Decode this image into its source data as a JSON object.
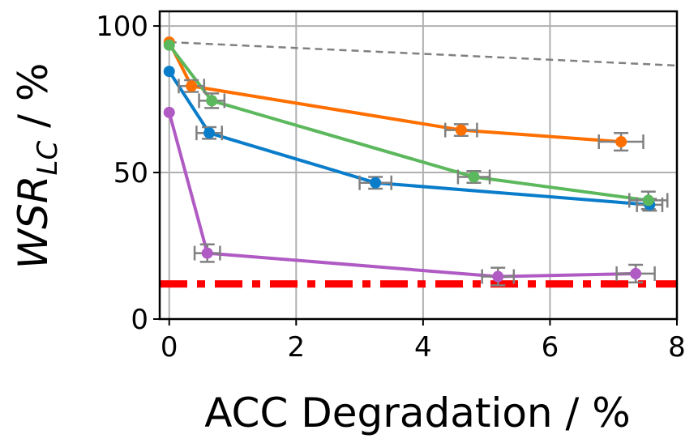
{
  "chart_data": {
    "type": "line",
    "title": "",
    "xlabel": "ACC Degradation / %",
    "ylabel": {
      "main": "WSR",
      "subscript": "LC",
      "suffix": " / %"
    },
    "xlim": [
      -0.15,
      8
    ],
    "ylim": [
      0,
      105
    ],
    "xticks": [
      0,
      2,
      4,
      6,
      8
    ],
    "yticks": [
      0,
      50,
      100
    ],
    "xtick_labels": [
      "0",
      "2",
      "4",
      "6",
      "8"
    ],
    "ytick_labels": [
      "0",
      "50",
      "100"
    ],
    "grid": true,
    "error_color": "#808080",
    "series": [
      {
        "name": "blue",
        "color": "#0a7dca",
        "points": [
          {
            "x": 0.0,
            "y": 84.5,
            "xerr": 0.0,
            "yerr": 0.0
          },
          {
            "x": 0.63,
            "y": 63.5,
            "xerr": 0.2,
            "yerr": 2.0
          },
          {
            "x": 3.25,
            "y": 46.5,
            "xerr": 0.25,
            "yerr": 2.0
          },
          {
            "x": 7.57,
            "y": 39.0,
            "xerr": 0.2,
            "yerr": 2.0
          }
        ]
      },
      {
        "name": "orange",
        "color": "#ff6f00",
        "points": [
          {
            "x": 0.0,
            "y": 94.5,
            "xerr": 0.0,
            "yerr": 0.0
          },
          {
            "x": 0.35,
            "y": 79.5,
            "xerr": 0.2,
            "yerr": 2.0
          },
          {
            "x": 4.6,
            "y": 64.5,
            "xerr": 0.25,
            "yerr": 2.0
          },
          {
            "x": 7.12,
            "y": 60.5,
            "xerr": 0.35,
            "yerr": 3.0
          }
        ]
      },
      {
        "name": "green",
        "color": "#5cb85c",
        "points": [
          {
            "x": 0.0,
            "y": 93.5,
            "xerr": 0.0,
            "yerr": 0.0
          },
          {
            "x": 0.67,
            "y": 74.5,
            "xerr": 0.2,
            "yerr": 2.5
          },
          {
            "x": 4.8,
            "y": 48.5,
            "xerr": 0.25,
            "yerr": 2.0
          },
          {
            "x": 7.55,
            "y": 40.5,
            "xerr": 0.3,
            "yerr": 3.0
          }
        ]
      },
      {
        "name": "purple",
        "color": "#b05ac4",
        "points": [
          {
            "x": 0.0,
            "y": 70.5,
            "xerr": 0.0,
            "yerr": 0.0
          },
          {
            "x": 0.6,
            "y": 22.5,
            "xerr": 0.2,
            "yerr": 3.0
          },
          {
            "x": 5.18,
            "y": 14.5,
            "xerr": 0.25,
            "yerr": 3.0
          },
          {
            "x": 7.35,
            "y": 15.5,
            "xerr": 0.3,
            "yerr": 3.0
          }
        ]
      }
    ],
    "reference_lines": [
      {
        "name": "gray-dashed-reference",
        "color": "#808080",
        "style": "dashed",
        "points": [
          {
            "x": 0.0,
            "y": 94.5
          },
          {
            "x": 8.0,
            "y": 86.5
          }
        ]
      },
      {
        "name": "red-dashdot-baseline",
        "color": "#ff0000",
        "style": "dashdot",
        "points": [
          {
            "x": -0.15,
            "y": 12.0
          },
          {
            "x": 8.0,
            "y": 12.0
          }
        ]
      }
    ]
  }
}
